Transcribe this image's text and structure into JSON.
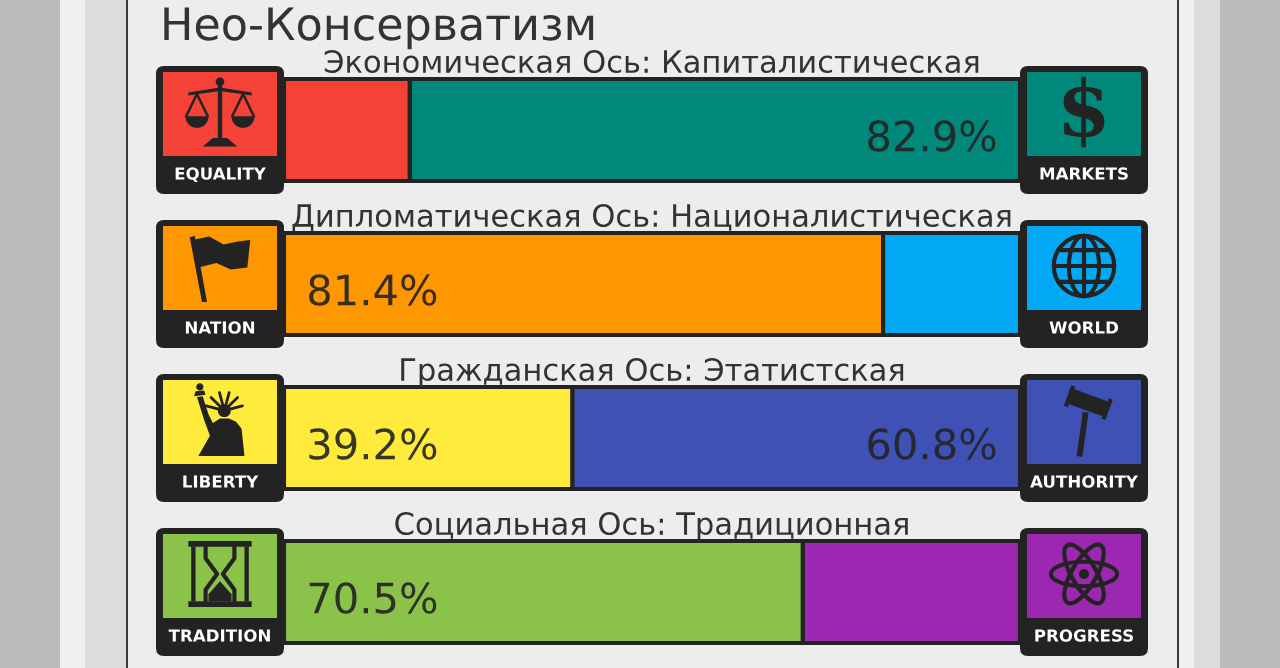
{
  "chart_data": [
    {
      "type": "other",
      "title": "Нео-Консерватизм"
    },
    {
      "type": "bar",
      "orientation": "horizontal",
      "stacked": true,
      "title": "Экономическая Ось: Капиталистическая",
      "categories": [
        null
      ],
      "xlim": [
        0,
        100
      ],
      "tick_labels": false,
      "series": [
        {
          "name": "EQUALITY",
          "color": "#f44336",
          "values": [
            17.1
          ]
        },
        {
          "name": "MARKETS",
          "color": "#00897b",
          "values": [
            82.9
          ],
          "value_labels": [
            "82.9%"
          ]
        }
      ]
    },
    {
      "type": "bar",
      "orientation": "horizontal",
      "stacked": true,
      "title": "Дипломатическая Ось: Националистическая",
      "categories": [
        null
      ],
      "xlim": [
        0,
        100
      ],
      "tick_labels": false,
      "series": [
        {
          "name": "NATION",
          "color": "#ff9800",
          "values": [
            81.4
          ],
          "value_labels": [
            "81.4%"
          ]
        },
        {
          "name": "WORLD",
          "color": "#03a9f4",
          "values": [
            18.6
          ]
        }
      ]
    },
    {
      "type": "bar",
      "orientation": "horizontal",
      "stacked": true,
      "title": "Гражданская Ось: Этатистская",
      "categories": [
        null
      ],
      "xlim": [
        0,
        100
      ],
      "tick_labels": false,
      "series": [
        {
          "name": "LIBERTY",
          "color": "#ffeb3b",
          "values": [
            39.2
          ],
          "value_labels": [
            "39.2%"
          ]
        },
        {
          "name": "AUTHORITY",
          "color": "#3f51b5",
          "values": [
            60.8
          ],
          "value_labels": [
            "60.8%"
          ]
        }
      ]
    },
    {
      "type": "bar",
      "orientation": "horizontal",
      "stacked": true,
      "title": "Социальная Ось: Традиционная",
      "categories": [
        null
      ],
      "xlim": [
        0,
        100
      ],
      "tick_labels": false,
      "series": [
        {
          "name": "TRADITION",
          "color": "#8bc34a",
          "values": [
            70.5
          ],
          "value_labels": [
            "70.5%"
          ]
        },
        {
          "name": "PROGRESS",
          "color": "#9c27b0",
          "values": [
            29.5
          ]
        }
      ]
    }
  ]
}
